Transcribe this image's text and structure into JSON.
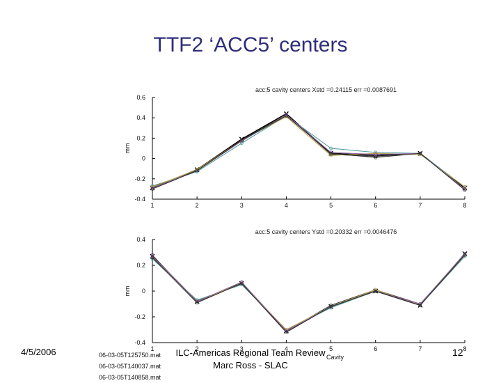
{
  "slide": {
    "title": "TTF2 ‘ACC5’ centers",
    "date": "4/5/2006",
    "footer_line1": "ILC-Americas Regional Team Review",
    "footer_line2": "Marc Ross - SLAC",
    "page_number": "12"
  },
  "files": [
    "06-03-05T125750.mat",
    "06-03-05T140037.mat",
    "06-03-05T140858.mat"
  ],
  "chart_data": [
    {
      "type": "line",
      "title": "acc:5 cavity centers Xstd =0.24115  err =0.0087691",
      "xlabel": "",
      "ylabel": "mm",
      "xlim": [
        1,
        8
      ],
      "ylim": [
        -0.4,
        0.6
      ],
      "x_ticks": [
        "1",
        "2",
        "3",
        "4",
        "5",
        "6",
        "7",
        "8"
      ],
      "y_ticks": [
        "0.6",
        "0.4",
        "0.2",
        "0",
        "-0.2",
        "-0.4"
      ],
      "grid": false,
      "x": [
        1,
        2,
        3,
        4,
        5,
        6,
        7,
        8
      ],
      "series": [
        {
          "color": "#000000",
          "values": [
            -0.29,
            -0.11,
            0.19,
            0.44,
            0.05,
            0.03,
            0.05,
            -0.29
          ]
        },
        {
          "color": "#3a3a3a",
          "values": [
            -0.28,
            -0.12,
            0.18,
            0.43,
            0.04,
            0.02,
            0.05,
            -0.3
          ]
        },
        {
          "color": "#4a9a9a",
          "values": [
            -0.27,
            -0.13,
            0.15,
            0.42,
            0.1,
            0.06,
            0.05,
            -0.28
          ]
        },
        {
          "color": "#b8a040",
          "values": [
            -0.28,
            -0.11,
            0.18,
            0.41,
            0.03,
            0.05,
            0.04,
            -0.28
          ]
        },
        {
          "color": "#9060a0",
          "values": [
            -0.29,
            -0.12,
            0.17,
            0.43,
            0.06,
            0.04,
            0.05,
            -0.3
          ]
        },
        {
          "color": "#2d2d2d",
          "values": [
            -0.3,
            -0.12,
            0.18,
            0.42,
            0.05,
            0.01,
            0.05,
            -0.31
          ]
        }
      ]
    },
    {
      "type": "line",
      "title": "acc:5 cavity centers Ystd =0.20332  err =0.0046476",
      "xlabel": "Cavity",
      "ylabel": "mm",
      "xlim": [
        1,
        8
      ],
      "ylim": [
        -0.4,
        0.4
      ],
      "x_ticks": [
        "1",
        "2",
        "3",
        "4",
        "5",
        "6",
        "7",
        "8"
      ],
      "y_ticks": [
        "0.4",
        "0.2",
        "0",
        "-0.2",
        "-0.4"
      ],
      "grid": false,
      "x": [
        1,
        2,
        3,
        4,
        5,
        6,
        7,
        8
      ],
      "series": [
        {
          "color": "#000000",
          "values": [
            0.27,
            -0.08,
            0.06,
            -0.31,
            -0.12,
            0.0,
            -0.11,
            0.29
          ]
        },
        {
          "color": "#3a3a3a",
          "values": [
            0.28,
            -0.09,
            0.07,
            -0.31,
            -0.11,
            0.01,
            -0.1,
            0.28
          ]
        },
        {
          "color": "#4a9a9a",
          "values": [
            0.25,
            -0.07,
            0.05,
            -0.3,
            -0.13,
            0.0,
            -0.11,
            0.27
          ]
        },
        {
          "color": "#b8a040",
          "values": [
            0.26,
            -0.08,
            0.06,
            -0.3,
            -0.12,
            0.01,
            -0.11,
            0.28
          ]
        },
        {
          "color": "#9060a0",
          "values": [
            0.27,
            -0.08,
            0.07,
            -0.31,
            -0.12,
            0.0,
            -0.1,
            0.29
          ]
        },
        {
          "color": "#2d2d2d",
          "values": [
            0.26,
            -0.09,
            0.06,
            -0.32,
            -0.12,
            0.0,
            -0.11,
            0.28
          ]
        }
      ]
    }
  ]
}
